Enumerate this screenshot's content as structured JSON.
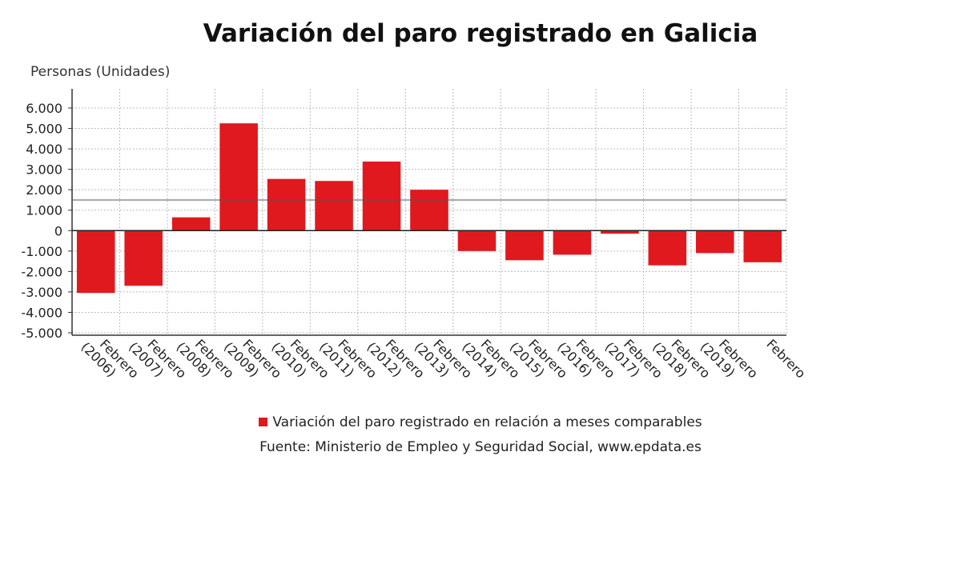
{
  "chart_data": {
    "type": "bar",
    "title": "Variación del paro registrado en Galicia",
    "ylabel": "Personas (Unidades)",
    "xlabel": "",
    "categories": [
      [
        "Febrero",
        "(2006)"
      ],
      [
        "Febrero",
        "(2007)"
      ],
      [
        "Febrero",
        "(2008)"
      ],
      [
        "Febrero",
        "(2009)"
      ],
      [
        "Febrero",
        "(2010)"
      ],
      [
        "Febrero",
        "(2011)"
      ],
      [
        "Febrero",
        "(2012)"
      ],
      [
        "Febrero",
        "(2013)"
      ],
      [
        "Febrero",
        "(2014)"
      ],
      [
        "Febrero",
        "(2015)"
      ],
      [
        "Febrero",
        "(2016)"
      ],
      [
        "Febrero",
        "(2017)"
      ],
      [
        "Febrero",
        "(2018)"
      ],
      [
        "Febrero",
        "(2019)"
      ],
      [
        "Febrero",
        ""
      ]
    ],
    "series": [
      {
        "name": "Variación del paro registrado en relación a meses comparables",
        "color": "#e0191f",
        "values": [
          -3050,
          -2700,
          650,
          5250,
          2530,
          2430,
          3380,
          2000,
          -1000,
          -1450,
          -1180,
          -150,
          -1700,
          -1100,
          -1550
        ]
      }
    ],
    "reference_line": 1500,
    "ylim": [
      -5000,
      6000
    ],
    "yticks": [
      6000,
      5000,
      4000,
      3000,
      2000,
      1000,
      0,
      -1000,
      -2000,
      -3000,
      -4000,
      -5000
    ],
    "ytick_labels": [
      "6.000",
      "5.000",
      "4.000",
      "3.000",
      "2.000",
      "1.000",
      "0",
      "-1.000",
      "-2.000",
      "-3.000",
      "-4.000",
      "-5.000"
    ],
    "grid": true,
    "legend_position": "bottom"
  },
  "source": "Fuente: Ministerio de Empleo y Seguridad Social, www.epdata.es"
}
